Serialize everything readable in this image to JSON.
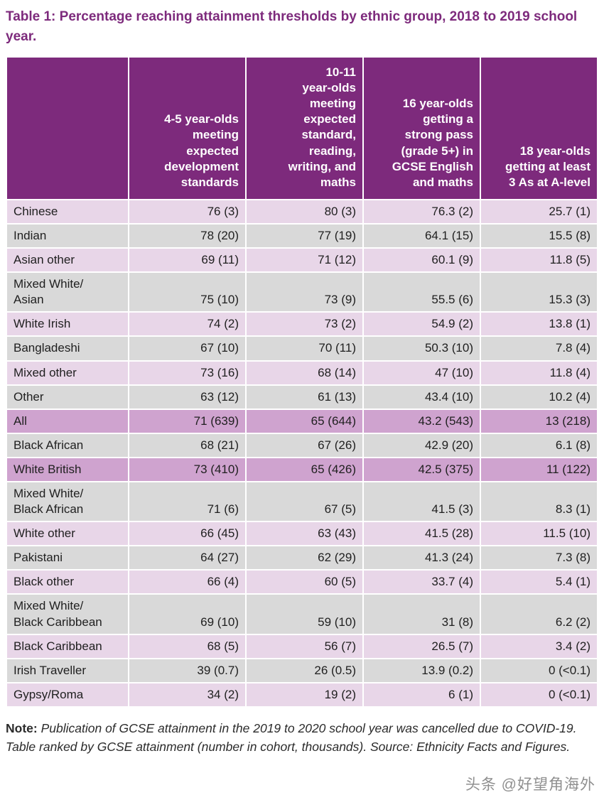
{
  "title": "Table 1: Percentage reaching attainment thresholds by ethnic group, 2018 to 2019 school year.",
  "table": {
    "columns": [
      "",
      "4-5 year-olds\nmeeting\nexpected\ndevelopment\nstandards",
      "10-11\nyear-olds\nmeeting\nexpected\nstandard,\nreading,\nwriting, and\nmaths",
      "16 year-olds\ngetting a\nstrong pass\n(grade 5+) in\nGCSE English\nand maths",
      "18 year-olds\ngetting at least\n3 As at A-level"
    ],
    "rows": [
      {
        "label": "Chinese",
        "values": [
          "76 (3)",
          "80 (3)",
          "76.3 (2)",
          "25.7 (1)"
        ],
        "style": "purple"
      },
      {
        "label": "Indian",
        "values": [
          "78 (20)",
          "77 (19)",
          "64.1 (15)",
          "15.5 (8)"
        ],
        "style": "gray"
      },
      {
        "label": "Asian other",
        "values": [
          "69 (11)",
          "71 (12)",
          "60.1 (9)",
          "11.8 (5)"
        ],
        "style": "purple"
      },
      {
        "label": "Mixed White/\nAsian",
        "values": [
          "75 (10)",
          "73 (9)",
          "55.5 (6)",
          "15.3 (3)"
        ],
        "style": "gray"
      },
      {
        "label": "White Irish",
        "values": [
          "74 (2)",
          "73 (2)",
          "54.9 (2)",
          "13.8 (1)"
        ],
        "style": "purple"
      },
      {
        "label": "Bangladeshi",
        "values": [
          "67 (10)",
          "70 (11)",
          "50.3 (10)",
          "7.8 (4)"
        ],
        "style": "gray"
      },
      {
        "label": "Mixed other",
        "values": [
          "73 (16)",
          "68 (14)",
          "47 (10)",
          "11.8 (4)"
        ],
        "style": "purple"
      },
      {
        "label": "Other",
        "values": [
          "63 (12)",
          "61 (13)",
          "43.4 (10)",
          "10.2 (4)"
        ],
        "style": "gray"
      },
      {
        "label": "All",
        "values": [
          "71 (639)",
          "65 (644)",
          "43.2 (543)",
          "13 (218)"
        ],
        "style": "highlight"
      },
      {
        "label": "Black African",
        "values": [
          "68 (21)",
          "67 (26)",
          "42.9 (20)",
          "6.1 (8)"
        ],
        "style": "gray"
      },
      {
        "label": "White British",
        "values": [
          "73 (410)",
          "65 (426)",
          "42.5 (375)",
          "11 (122)"
        ],
        "style": "highlight"
      },
      {
        "label": "Mixed White/\nBlack African",
        "values": [
          "71 (6)",
          "67 (5)",
          "41.5 (3)",
          "8.3 (1)"
        ],
        "style": "gray"
      },
      {
        "label": "White other",
        "values": [
          "66 (45)",
          "63 (43)",
          "41.5 (28)",
          "11.5 (10)"
        ],
        "style": "purple"
      },
      {
        "label": "Pakistani",
        "values": [
          "64 (27)",
          "62 (29)",
          "41.3 (24)",
          "7.3 (8)"
        ],
        "style": "gray"
      },
      {
        "label": "Black other",
        "values": [
          "66 (4)",
          "60 (5)",
          "33.7 (4)",
          "5.4 (1)"
        ],
        "style": "purple"
      },
      {
        "label": "Mixed White/\nBlack Caribbean",
        "values": [
          "69 (10)",
          "59 (10)",
          "31 (8)",
          "6.2 (2)"
        ],
        "style": "gray"
      },
      {
        "label": "Black Caribbean",
        "values": [
          "68 (5)",
          "56 (7)",
          "26.5 (7)",
          "3.4 (2)"
        ],
        "style": "purple"
      },
      {
        "label": "Irish Traveller",
        "values": [
          "39 (0.7)",
          "26 (0.5)",
          "13.9 (0.2)",
          "0 (<0.1)"
        ],
        "style": "gray"
      },
      {
        "label": "Gypsy/Roma",
        "values": [
          "34 (2)",
          "19 (2)",
          "6 (1)",
          "0 (<0.1)"
        ],
        "style": "purple"
      }
    ]
  },
  "note": {
    "label": "Note:",
    "text": "Publication of GCSE attainment in the 2019 to 2020 school year was cancelled due to COVID-19. Table ranked by GCSE attainment (number in cohort, thousands). Source: Ethnicity Facts and Figures."
  },
  "watermark": "头条 @好望角海外",
  "colors": {
    "header_bg": "#7d2a7c",
    "title_text": "#7d2a7c",
    "row_purple": "#e8d6e8",
    "row_gray": "#d9d9d9",
    "row_highlight": "#cfa3cf"
  }
}
